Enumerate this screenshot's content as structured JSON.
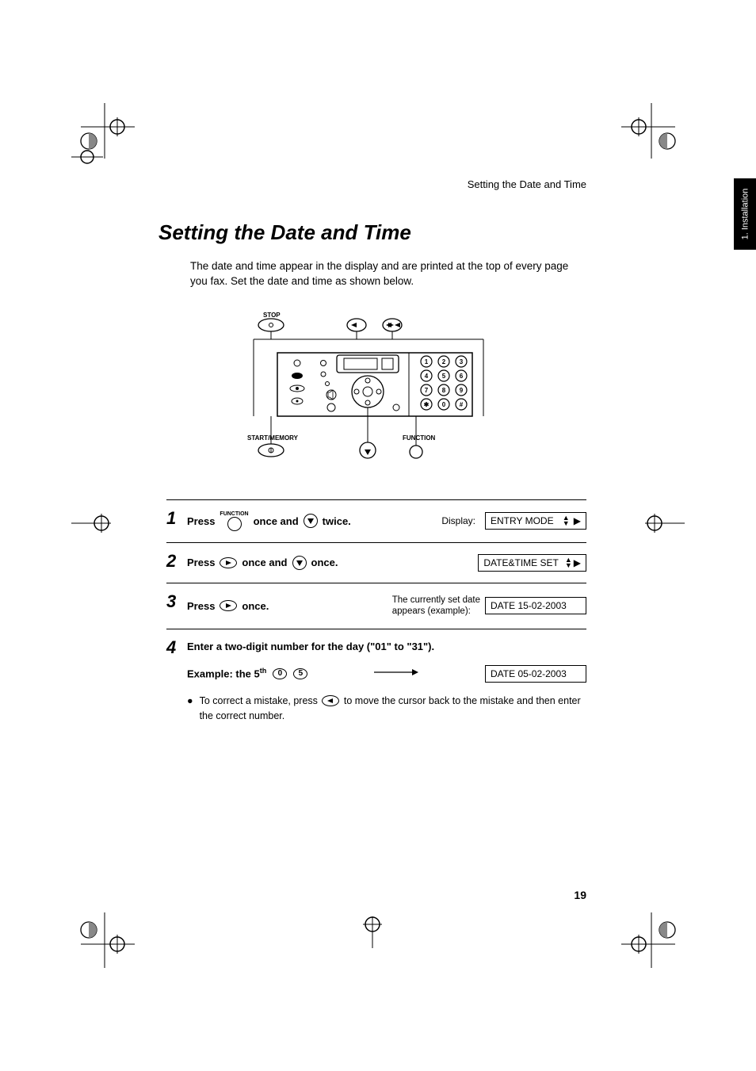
{
  "running_head": "Setting the Date and Time",
  "side_tab": "1. Installation",
  "title": "Setting the Date and Time",
  "intro": "The date and time appear in the display and are printed at the top of every page you fax. Set the date and time as shown below.",
  "device_labels": {
    "stop": "STOP",
    "start_memory": "START/MEMORY",
    "function": "FUNCTION"
  },
  "keypad": {
    "rows": [
      [
        "1",
        "2",
        "3"
      ],
      [
        "4",
        "5",
        "6"
      ],
      [
        "7",
        "8",
        "9"
      ],
      [
        "*",
        "0",
        "#"
      ]
    ]
  },
  "steps": [
    {
      "num": "1",
      "press": "Press",
      "func_label": "FUNCTION",
      "mid1": "once and",
      "mid2": "twice.",
      "display_label": "Display:",
      "lcd": "ENTRY MODE",
      "has_updown": true
    },
    {
      "num": "2",
      "press": "Press",
      "mid1": "once and",
      "mid2": "once.",
      "lcd": "DATE&TIME SET",
      "has_updown": true
    },
    {
      "num": "3",
      "press": "Press",
      "mid2": "once.",
      "note1": "The currently set date",
      "note2": "appears (example):",
      "lcd": "DATE 15-02-2003",
      "has_updown": false
    },
    {
      "num": "4",
      "line1": "Enter a two-digit number for the day (\"01\" to \"31\").",
      "example_label": "Example: the 5",
      "example_sup": "th",
      "key0": "0",
      "key5": "5",
      "lcd": "DATE 05-02-2003",
      "bullet_pre": "To correct a mistake, press",
      "bullet_post": "to move the cursor back to the mistake and then enter the correct number."
    }
  ],
  "page_number": "19",
  "colors": {
    "fg": "#000000",
    "bg": "#ffffff"
  }
}
